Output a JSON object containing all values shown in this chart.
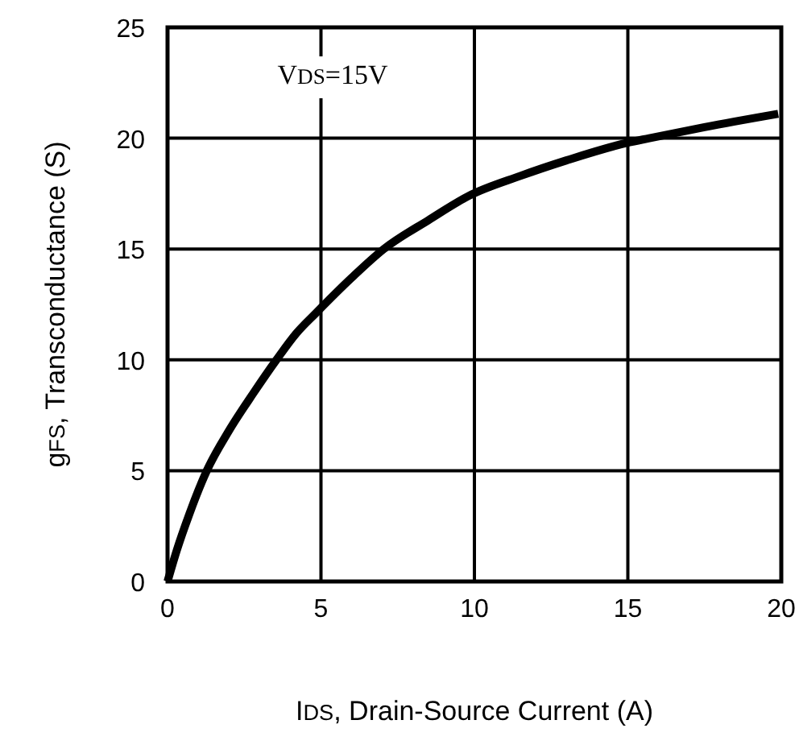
{
  "chart_data": {
    "type": "line",
    "xlabel": "I$_{DS}$, Drain-Source Current (A)",
    "ylabel": "g$_{FS}$, Transconductance (S)",
    "annotations": [
      "V$_{DS}$=15V"
    ],
    "x": [
      0,
      0.3,
      0.7,
      1.28,
      2,
      2.8,
      3.55,
      4.2,
      4.83,
      6,
      7.05,
      8.5,
      9.82,
      11.5,
      13,
      15,
      15.7,
      17.5,
      19.9
    ],
    "series": [
      {
        "color": "#000000",
        "values": [
          0,
          1.4,
          3,
          5,
          6.8,
          8.5,
          10,
          11.2,
          12.1,
          13.7,
          15,
          16.3,
          17.4,
          18.3,
          19,
          19.8,
          20,
          20.5,
          21.1
        ]
      }
    ],
    "xlim": [
      0,
      20
    ],
    "ylim": [
      0,
      25
    ],
    "xticks": [
      0,
      5,
      10,
      15,
      20
    ],
    "yticks": [
      0,
      5,
      10,
      15,
      20,
      25
    ],
    "grid": true,
    "line_style": "solid",
    "marker": "none"
  }
}
